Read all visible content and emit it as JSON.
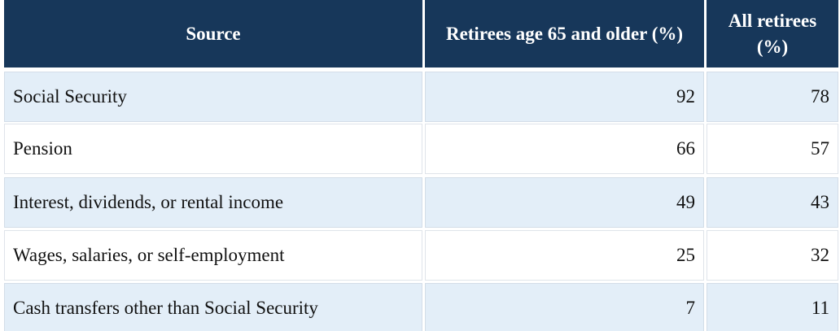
{
  "table": {
    "headers": [
      "Source",
      "Retirees age 65 and older (%)",
      "All retirees (%)"
    ],
    "rows": [
      [
        "Social Security",
        92,
        78
      ],
      [
        "Pension",
        66,
        57
      ],
      [
        "Interest, dividends, or rental income",
        49,
        43
      ],
      [
        "Wages, salaries, or self-employment",
        25,
        32
      ],
      [
        "Cash transfers other than Social Security",
        7,
        11
      ]
    ]
  }
}
